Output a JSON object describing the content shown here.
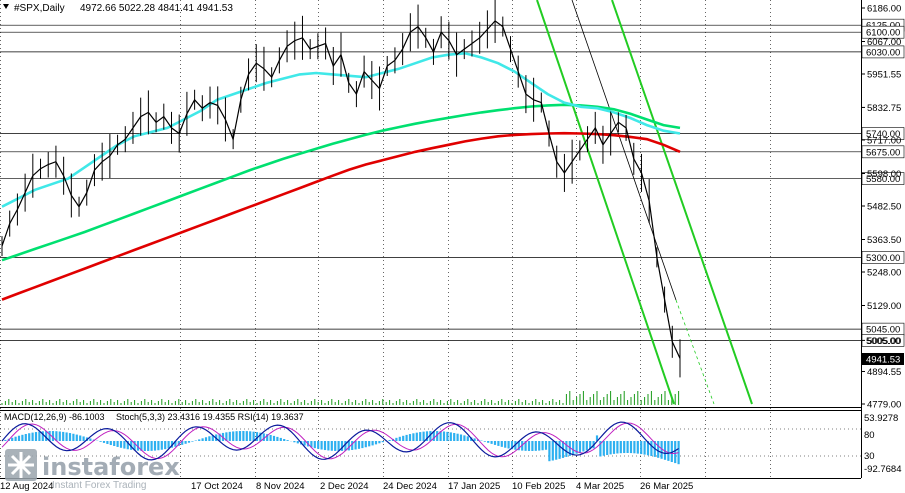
{
  "header": {
    "symbol": "#SPX,Daily",
    "ohlc": "4972.66 5022.28 4841.41 4941.53",
    "indicator_label": "Stoch(5,3,3) 23.4316 19.4355  RSI(14) 19.3637",
    "macd_label": "MACD(12,26,9) -86.1003"
  },
  "logo": {
    "brand": "instaforex",
    "tagline": "Instant Forex Trading"
  },
  "colors": {
    "bg": "#ffffff",
    "price": "#000000",
    "ema200": "#e00000",
    "ema144": "#00e070",
    "ema50": "#40e8e8",
    "channel": "#22cc22",
    "trend": "#000000",
    "level_line": "#000000",
    "macd_hist": "#2db0f0",
    "stoch_main": "#0a1a9c",
    "stoch_signal": "#c020c0"
  },
  "chart_data": {
    "type": "line",
    "title": "#SPX,Daily",
    "x_labels": [
      "12 Aug 2024",
      "17 Oct 2024",
      "8 Nov 2024",
      "2 Dec 2024",
      "24 Dec 2024",
      "17 Jan 2025",
      "10 Feb 2025",
      "4 Mar 2025",
      "26 Mar 2025"
    ],
    "y_ticks": [
      6186.0,
      6067.0,
      5951.55,
      5832.75,
      5717.0,
      5598.0,
      5482.5,
      5363.5,
      5248.0,
      5129.0,
      5005.0,
      4894.55,
      4779.0
    ],
    "ylim": [
      4779.0,
      6186.0
    ],
    "levels": [
      6125.0,
      6100.0,
      6030.0,
      5740.0,
      5675.0,
      5580.0,
      5300.0,
      5045.0,
      5005.0
    ],
    "current_price": "4941.53",
    "series": [
      {
        "name": "",
        "type": "price",
        "values": [
          5340,
          5420,
          5470,
          5530,
          5590,
          5615,
          5630,
          5640,
          5590,
          5520,
          5480,
          5530,
          5610,
          5640,
          5660,
          5700,
          5720,
          5760,
          5800,
          5815,
          5780,
          5800,
          5760,
          5740,
          5810,
          5860,
          5830,
          5850,
          5840,
          5790,
          5720,
          5860,
          5950,
          5990,
          5970,
          5940,
          6000,
          6050,
          6070,
          6080,
          6040,
          6050,
          6060,
          5980,
          6020,
          5920,
          5880,
          5960,
          5930,
          5900,
          5980,
          6000,
          6040,
          6100,
          6120,
          6080,
          6030,
          6100,
          6070,
          6020,
          6040,
          6060,
          6080,
          6110,
          6140,
          6120,
          6040,
          5960,
          5880,
          5860,
          5850,
          5740,
          5640,
          5600,
          5640,
          5680,
          5720,
          5760,
          5700,
          5740,
          5780,
          5760,
          5650,
          5600,
          5500,
          5300,
          5150,
          5000,
          4941
        ]
      },
      {
        "name": "",
        "type": "ma",
        "values": [
          5150,
          5172,
          5194,
          5216,
          5238,
          5260,
          5282,
          5304,
          5326,
          5348,
          5370,
          5392,
          5414,
          5436,
          5458,
          5480,
          5502,
          5524,
          5546,
          5568,
          5590,
          5612,
          5630,
          5645,
          5660,
          5675,
          5688,
          5700,
          5712,
          5722,
          5730,
          5735,
          5738,
          5740,
          5741,
          5740,
          5738,
          5734,
          5728,
          5720,
          5700,
          5675
        ]
      },
      {
        "name": "",
        "type": "ma",
        "values": [
          5290,
          5310,
          5330,
          5350,
          5370,
          5390,
          5412,
          5434,
          5456,
          5478,
          5500,
          5522,
          5544,
          5566,
          5588,
          5610,
          5630,
          5650,
          5668,
          5686,
          5704,
          5720,
          5736,
          5750,
          5763,
          5775,
          5786,
          5796,
          5806,
          5815,
          5823,
          5830,
          5836,
          5840,
          5842,
          5840,
          5835,
          5826,
          5810,
          5790,
          5770,
          5760
        ]
      },
      {
        "name": "",
        "type": "ma",
        "values": [
          5480,
          5510,
          5540,
          5560,
          5580,
          5620,
          5660,
          5700,
          5730,
          5745,
          5760,
          5790,
          5820,
          5860,
          5880,
          5900,
          5920,
          5935,
          5950,
          5955,
          5950,
          5945,
          5940,
          5955,
          5970,
          5990,
          6010,
          6020,
          6025,
          6010,
          5990,
          5960,
          5920,
          5880,
          5850,
          5835,
          5830,
          5815,
          5795,
          5770,
          5750,
          5740
        ]
      }
    ],
    "stoch_levels": [
      "80",
      "30",
      "-92.7684",
      "53.9278"
    ]
  }
}
